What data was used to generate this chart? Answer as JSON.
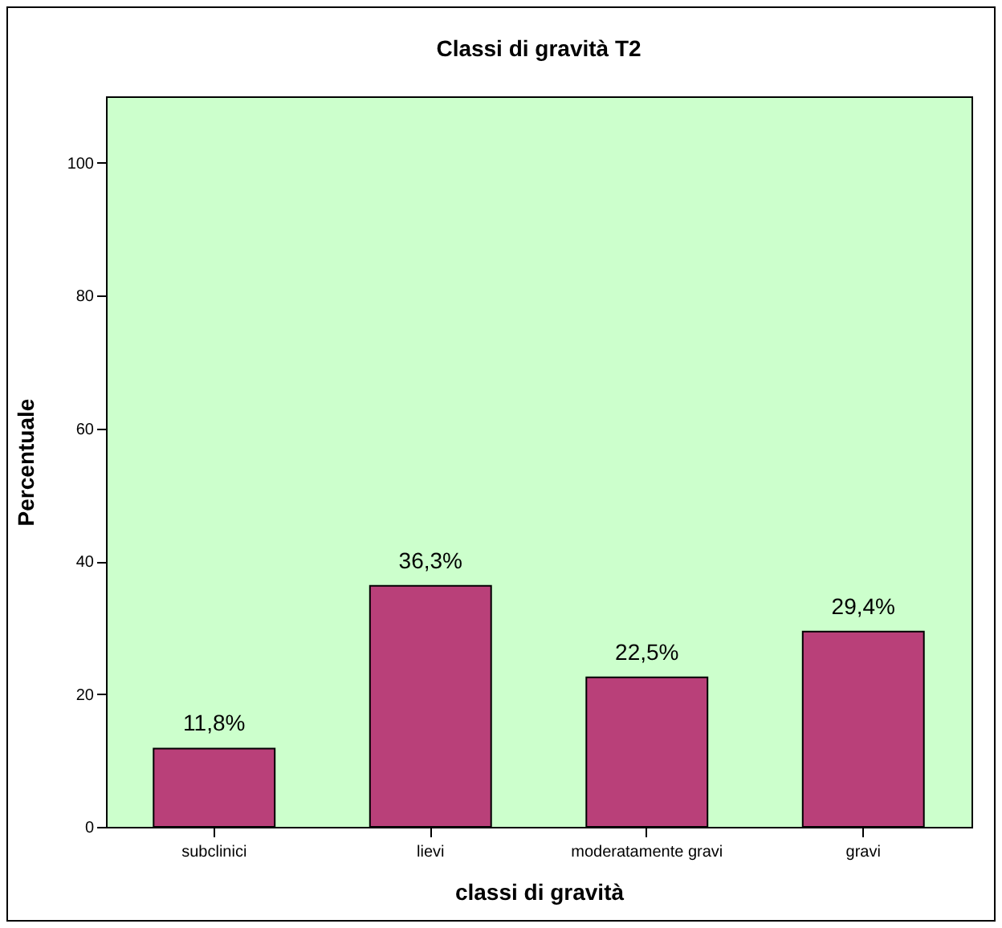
{
  "chart_data": {
    "type": "bar",
    "title": "Classi di gravità T2",
    "xlabel": "classi di gravità",
    "ylabel": "Percentuale",
    "categories": [
      "subclinici",
      "lievi",
      "moderatamente gravi",
      "gravi"
    ],
    "values": [
      11.8,
      36.3,
      22.5,
      29.4
    ],
    "value_labels": [
      "11,8%",
      "36,3%",
      "22,5%",
      "29,4%"
    ],
    "color": "#b94079",
    "ylim": [
      0,
      110
    ],
    "yticks": [
      0,
      20,
      40,
      60,
      80,
      100
    ],
    "grid": false
  }
}
